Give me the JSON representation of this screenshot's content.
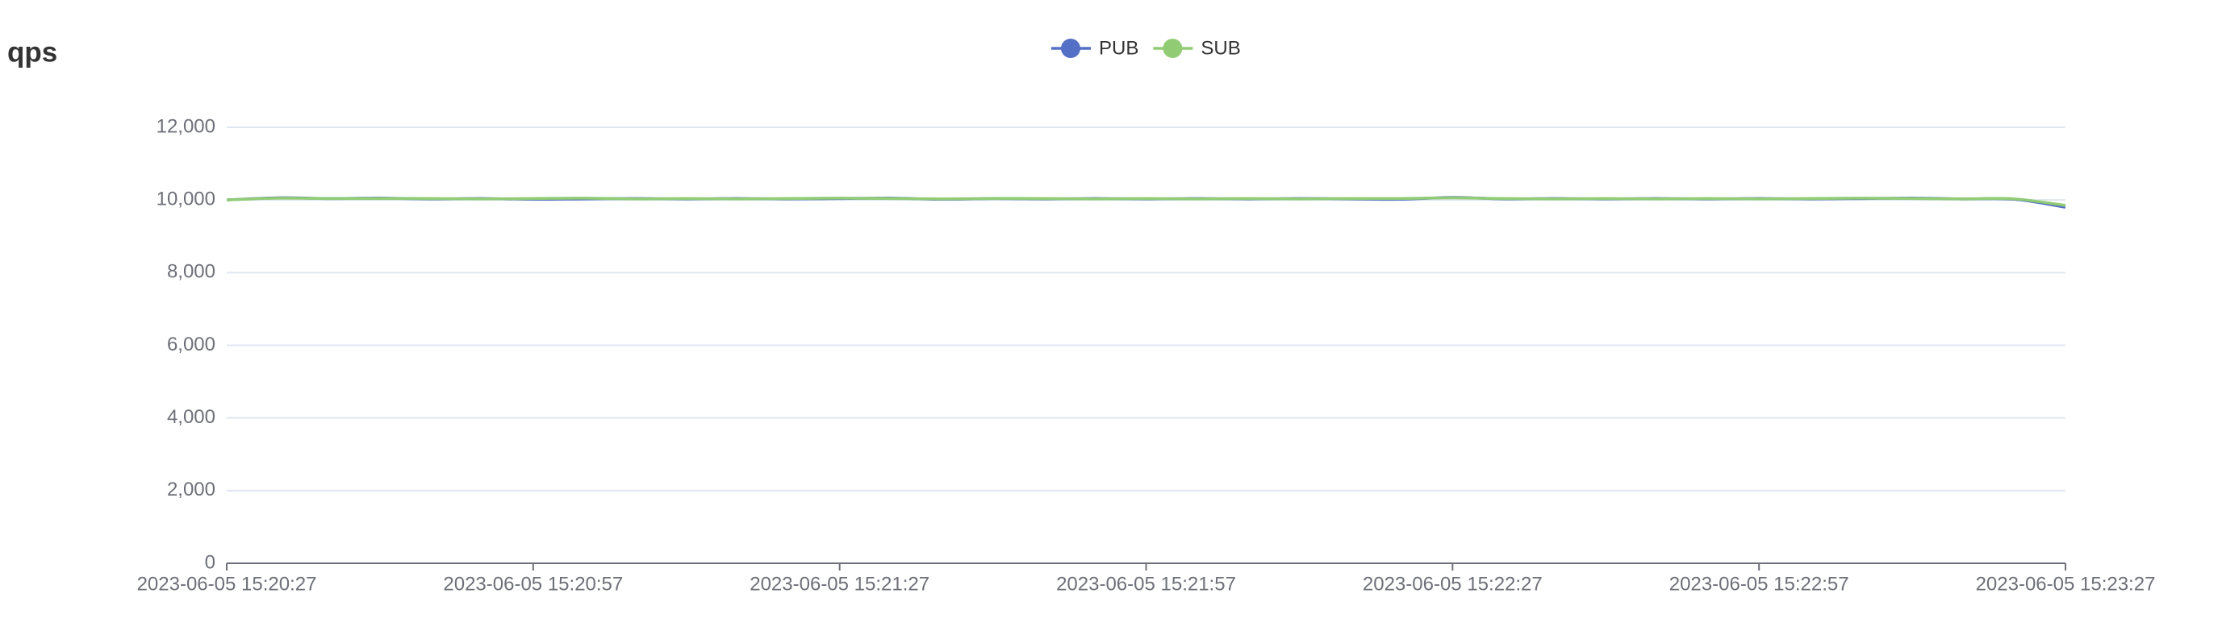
{
  "chart_data": {
    "type": "line",
    "title": "qps",
    "x": [
      "2023-06-05 15:20:27",
      "2023-06-05 15:20:32",
      "2023-06-05 15:20:37",
      "2023-06-05 15:20:42",
      "2023-06-05 15:20:47",
      "2023-06-05 15:20:52",
      "2023-06-05 15:20:57",
      "2023-06-05 15:21:02",
      "2023-06-05 15:21:07",
      "2023-06-05 15:21:12",
      "2023-06-05 15:21:17",
      "2023-06-05 15:21:22",
      "2023-06-05 15:21:27",
      "2023-06-05 15:21:32",
      "2023-06-05 15:21:37",
      "2023-06-05 15:21:42",
      "2023-06-05 15:21:47",
      "2023-06-05 15:21:52",
      "2023-06-05 15:21:57",
      "2023-06-05 15:22:02",
      "2023-06-05 15:22:07",
      "2023-06-05 15:22:12",
      "2023-06-05 15:22:17",
      "2023-06-05 15:22:22",
      "2023-06-05 15:22:27",
      "2023-06-05 15:22:32",
      "2023-06-05 15:22:37",
      "2023-06-05 15:22:42",
      "2023-06-05 15:22:47",
      "2023-06-05 15:22:52",
      "2023-06-05 15:22:57",
      "2023-06-05 15:23:02",
      "2023-06-05 15:23:07",
      "2023-06-05 15:23:12",
      "2023-06-05 15:23:17",
      "2023-06-05 15:23:22",
      "2023-06-05 15:23:27"
    ],
    "series": [
      {
        "name": "PUB",
        "color": "#5470c6",
        "values": [
          10000,
          10060,
          10040,
          10050,
          10030,
          10040,
          10020,
          10030,
          10040,
          10030,
          10040,
          10030,
          10040,
          10050,
          10020,
          10040,
          10030,
          10040,
          10030,
          10040,
          10030,
          10040,
          10030,
          10020,
          10070,
          10030,
          10040,
          10030,
          10040,
          10030,
          10040,
          10030,
          10040,
          10050,
          10030,
          10020,
          9800
        ]
      },
      {
        "name": "SUB",
        "color": "#91cc75",
        "values": [
          10000,
          10050,
          10040,
          10040,
          10040,
          10030,
          10040,
          10050,
          10030,
          10040,
          10030,
          10040,
          10050,
          10040,
          10030,
          10040,
          10040,
          10030,
          10040,
          10030,
          10040,
          10030,
          10040,
          10040,
          10060,
          10040,
          10030,
          10040,
          10030,
          10040,
          10030,
          10040,
          10050,
          10040,
          10030,
          10030,
          9850
        ]
      }
    ],
    "xlim": [
      "2023-06-05 15:20:27",
      "2023-06-05 15:23:27"
    ],
    "xticks": [
      "2023-06-05 15:20:27",
      "2023-06-05 15:20:57",
      "2023-06-05 15:21:27",
      "2023-06-05 15:21:57",
      "2023-06-05 15:22:27",
      "2023-06-05 15:22:57",
      "2023-06-05 15:23:27"
    ],
    "ylim": [
      0,
      12000
    ],
    "yticks": [
      0,
      {
        "value": 2000,
        "label": "2,000"
      },
      {
        "value": 4000,
        "label": "4,000"
      },
      {
        "value": 6000,
        "label": "6,000"
      },
      {
        "value": 8000,
        "label": "8,000"
      },
      {
        "value": 10000,
        "label": "10,000"
      },
      {
        "value": 12000,
        "label": "12,000"
      }
    ],
    "grid": true,
    "legend": "top"
  }
}
